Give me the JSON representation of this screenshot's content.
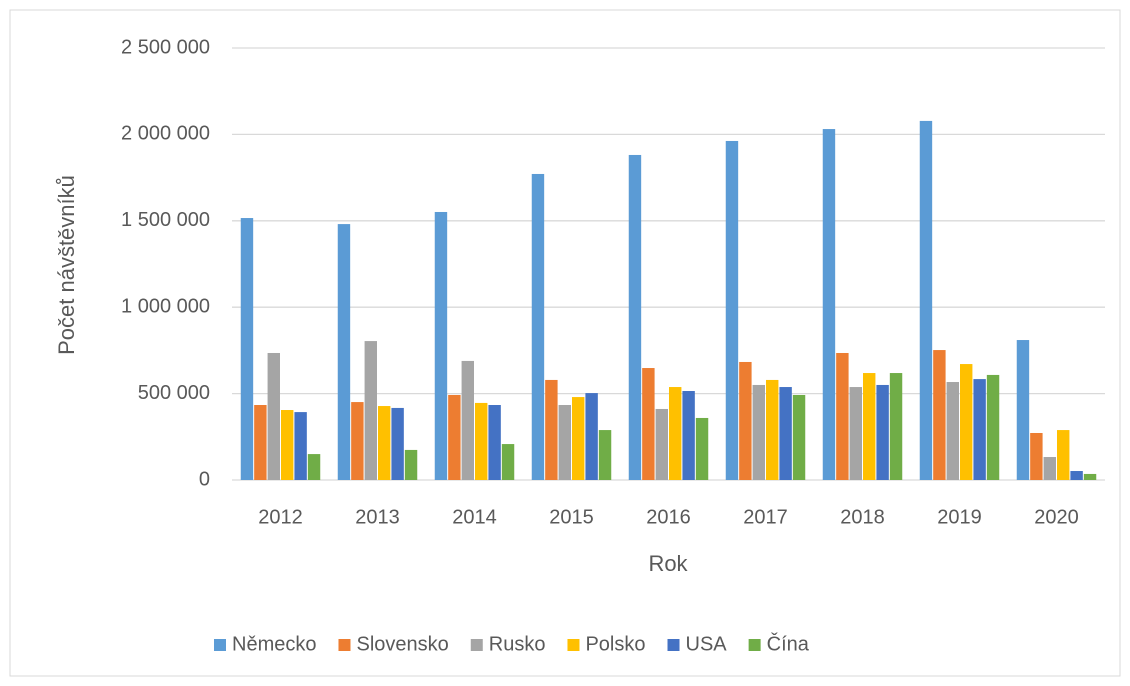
{
  "chart_data": {
    "type": "bar",
    "x_label": "Rok",
    "y_label": "Počet návštěvníků",
    "categories": [
      "2012",
      "2013",
      "2014",
      "2015",
      "2016",
      "2017",
      "2018",
      "2019",
      "2020"
    ],
    "series": [
      {
        "name": "Německo",
        "color": "#5b9bd5",
        "values": [
          1516000,
          1481000,
          1551000,
          1771000,
          1881000,
          1962000,
          2031000,
          2078000,
          810000
        ]
      },
      {
        "name": "Slovensko",
        "color": "#ed7d31",
        "values": [
          434000,
          451000,
          492000,
          579000,
          648000,
          683000,
          735000,
          752000,
          272000
        ]
      },
      {
        "name": "Rusko",
        "color": "#a5a5a5",
        "values": [
          735000,
          804000,
          689000,
          434000,
          411000,
          550000,
          538000,
          567000,
          133000
        ]
      },
      {
        "name": "Polsko",
        "color": "#ffc000",
        "values": [
          405000,
          428000,
          446000,
          480000,
          538000,
          579000,
          619000,
          671000,
          289000
        ]
      },
      {
        "name": "USA",
        "color": "#4472c4",
        "values": [
          393000,
          417000,
          434000,
          503000,
          515000,
          538000,
          550000,
          584000,
          52000
        ]
      },
      {
        "name": "Čína",
        "color": "#70ad47",
        "values": [
          150000,
          174000,
          208000,
          289000,
          359000,
          492000,
          619000,
          608000,
          35000
        ]
      }
    ],
    "ylim": [
      0,
      2500000
    ],
    "yticks": [
      0,
      {
        "value": 500000,
        "label": "500 000"
      },
      {
        "value": 1000000,
        "label": "1 000 000"
      },
      {
        "value": 1500000,
        "label": "1 500 000"
      },
      {
        "value": 2000000,
        "label": "2 000 000"
      },
      {
        "value": 2500000,
        "label": "2 500 000"
      }
    ],
    "grid": true,
    "legend": "bottom"
  }
}
